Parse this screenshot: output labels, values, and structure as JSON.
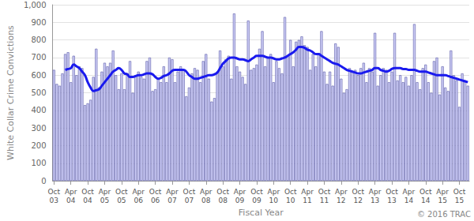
{
  "chart_data": {
    "type": "bar",
    "y_label": "White Collar Crime Convictions",
    "x_label": "Fiscal Year",
    "annotations": [
      "© 2016 TRAC"
    ],
    "categories": [
      "Oct 03",
      null,
      null,
      null,
      null,
      null,
      "Apr 04",
      null,
      null,
      null,
      null,
      null,
      "Oct 04",
      null,
      null,
      null,
      null,
      null,
      "Apr 05",
      null,
      null,
      null,
      null,
      null,
      "Oct 05",
      null,
      null,
      null,
      null,
      null,
      "Apr 06",
      null,
      null,
      null,
      null,
      null,
      "Oct 06",
      null,
      null,
      null,
      null,
      null,
      "Apr 07",
      null,
      null,
      null,
      null,
      null,
      "Oct 07",
      null,
      null,
      null,
      null,
      null,
      "Apr 08",
      null,
      null,
      null,
      null,
      null,
      "Oct 08",
      null,
      null,
      null,
      null,
      null,
      "Apr 09",
      null,
      null,
      null,
      null,
      null,
      "Oct 09",
      null,
      null,
      null,
      null,
      null,
      "Apr 10",
      null,
      null,
      null,
      null,
      null,
      "Oct 10",
      null,
      null,
      null,
      null,
      null,
      "Apr 11",
      null,
      null,
      null,
      null,
      null,
      "Oct 11",
      null,
      null,
      null,
      null,
      null,
      "Apr 12",
      null,
      null,
      null,
      null,
      null,
      "Oct 12",
      null,
      null,
      null,
      null,
      null,
      "Apr 13",
      null,
      null,
      null,
      null,
      null,
      "Oct 13",
      null,
      null,
      null,
      null,
      null,
      "Apr 14",
      null,
      null,
      null,
      null,
      null,
      "Oct 14",
      null,
      null,
      null,
      null,
      null,
      "Apr 15",
      null,
      null,
      null,
      null,
      null,
      "Oct 15",
      null,
      null,
      null
    ],
    "series": [
      {
        "type": "bar",
        "color": "#ccccf5",
        "values": [
          630,
          550,
          540,
          610,
          720,
          730,
          560,
          710,
          600,
          650,
          640,
          430,
          440,
          460,
          590,
          750,
          530,
          620,
          670,
          650,
          670,
          740,
          600,
          520,
          610,
          520,
          610,
          680,
          500,
          600,
          620,
          590,
          580,
          680,
          700,
          510,
          520,
          580,
          560,
          650,
          560,
          700,
          690,
          560,
          620,
          650,
          630,
          480,
          530,
          610,
          640,
          630,
          560,
          680,
          720,
          580,
          450,
          470,
          620,
          740,
          650,
          690,
          710,
          580,
          950,
          650,
          620,
          590,
          550,
          910,
          630,
          640,
          660,
          750,
          850,
          650,
          700,
          720,
          560,
          680,
          640,
          610,
          930,
          710,
          800,
          650,
          790,
          800,
          820,
          770,
          760,
          630,
          720,
          650,
          720,
          850,
          620,
          550,
          620,
          540,
          780,
          760,
          580,
          500,
          520,
          640,
          620,
          630,
          600,
          640,
          670,
          560,
          640,
          620,
          840,
          540,
          600,
          640,
          630,
          560,
          620,
          840,
          570,
          600,
          560,
          590,
          540,
          600,
          890,
          560,
          520,
          640,
          660,
          560,
          500,
          680,
          700,
          490,
          650,
          530,
          510,
          740,
          600,
          570,
          420,
          610,
          570,
          540
        ]
      },
      {
        "type": "line",
        "color": "#1a1aee",
        "values": [
          null,
          null,
          null,
          null,
          630,
          635,
          640,
          660,
          650,
          640,
          620,
          600,
          560,
          530,
          510,
          515,
          520,
          540,
          560,
          580,
          600,
          620,
          630,
          640,
          630,
          610,
          605,
          590,
          590,
          595,
          600,
          600,
          605,
          610,
          610,
          605,
          590,
          580,
          585,
          595,
          600,
          610,
          625,
          630,
          630,
          630,
          630,
          620,
          600,
          590,
          580,
          580,
          585,
          590,
          595,
          600,
          600,
          605,
          615,
          640,
          665,
          680,
          695,
          700,
          700,
          695,
          690,
          690,
          685,
          680,
          690,
          700,
          710,
          710,
          710,
          705,
          700,
          700,
          695,
          690,
          690,
          695,
          700,
          710,
          720,
          730,
          745,
          760,
          760,
          755,
          745,
          740,
          730,
          720,
          720,
          710,
          700,
          690,
          680,
          670,
          665,
          660,
          650,
          640,
          630,
          625,
          620,
          615,
          610,
          610,
          615,
          620,
          625,
          630,
          640,
          640,
          630,
          625,
          620,
          625,
          635,
          640,
          640,
          640,
          635,
          635,
          630,
          630,
          630,
          625,
          620,
          620,
          620,
          615,
          610,
          605,
          600,
          600,
          600,
          600,
          595,
          590,
          585,
          580,
          575,
          570,
          565,
          560
        ]
      }
    ],
    "ylim": [
      0,
      1000
    ],
    "yticks": [
      0,
      100,
      200,
      300,
      400,
      500,
      600,
      700,
      800,
      900,
      {
        "value": 1000,
        "label": "1,000"
      }
    ],
    "grid": true
  }
}
